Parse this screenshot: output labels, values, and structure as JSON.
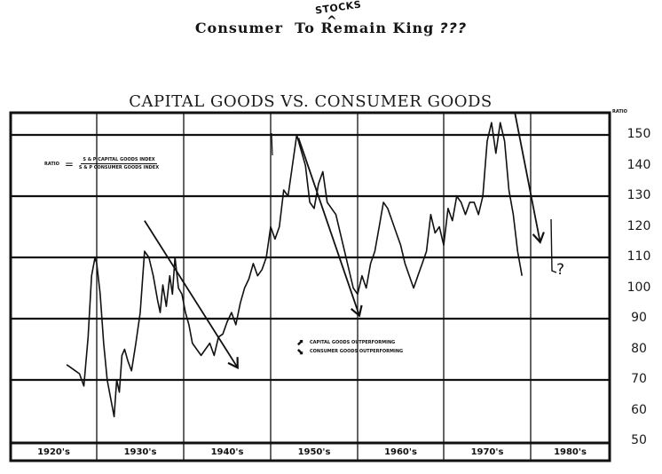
{
  "headline": {
    "text": "Consumer",
    "text_rest": "To Remain King",
    "question_marks": "???",
    "handwritten_insert": "STOCKS",
    "caret": "^"
  },
  "chart_data": {
    "type": "line",
    "title": "CAPITAL GOODS VS. CONSUMER GOODS",
    "xlabel": "",
    "ylabel": "RATIO",
    "ylim": [
      50,
      157
    ],
    "yticks": [
      150,
      140,
      130,
      120,
      110,
      100,
      90,
      80,
      70,
      60,
      50
    ],
    "categories": [
      "1920's",
      "1930's",
      "1940's",
      "1950's",
      "1960's",
      "1970's",
      "1980's"
    ],
    "grid": true,
    "formula": {
      "lhs": "RATIO",
      "numerator": "S & P CAPITAL GOODS INDEX",
      "denominator": "S & P CONSUMER GOODS INDEX"
    },
    "legend": [
      {
        "symbol": "up-arrow",
        "label": "CAPITAL GOODS OUTPERFORMING"
      },
      {
        "symbol": "down-arrow",
        "label": "CONSUMER GOODS OUTPERFORMING"
      }
    ],
    "series": [
      {
        "name": "S&P Capital Goods / Consumer Goods Ratio",
        "x": [
          1926.5,
          1927.0,
          1927.5,
          1928.0,
          1928.5,
          1929.0,
          1929.4,
          1929.8,
          1930.0,
          1930.4,
          1930.8,
          1931.2,
          1931.6,
          1932.0,
          1932.3,
          1932.6,
          1932.9,
          1933.2,
          1933.6,
          1934.0,
          1934.5,
          1935.0,
          1935.5,
          1936.0,
          1936.5,
          1937.0,
          1937.3,
          1937.6,
          1938.0,
          1938.4,
          1938.7,
          1939.0,
          1939.4,
          1939.8,
          1940.2,
          1940.6,
          1941.0,
          1941.5,
          1942.0,
          1942.5,
          1943.0,
          1943.5,
          1944.0,
          1944.5,
          1945.0,
          1945.5,
          1946.0,
          1946.5,
          1947.0,
          1947.5,
          1948.0,
          1948.5,
          1949.0,
          1949.5,
          1950.0,
          1950.5,
          1951.0,
          1951.5,
          1952.0,
          1952.5,
          1953.0,
          1953.5,
          1954.0,
          1954.5,
          1955.0,
          1955.5,
          1956.0,
          1956.5,
          1957.0,
          1957.5,
          1958.0,
          1958.5,
          1959.0,
          1959.5,
          1960.0,
          1960.5,
          1961.0,
          1961.5,
          1962.0,
          1962.5,
          1963.0,
          1963.5,
          1964.0,
          1964.5,
          1965.0,
          1965.5,
          1966.0,
          1966.5,
          1967.0,
          1967.5,
          1968.0,
          1968.5,
          1969.0,
          1969.5,
          1970.0,
          1970.5,
          1971.0,
          1971.5,
          1972.0,
          1972.5,
          1973.0,
          1973.5,
          1974.0,
          1974.5,
          1975.0,
          1975.5,
          1976.0,
          1976.5,
          1977.0,
          1977.5,
          1978.0,
          1978.5,
          1979.0
        ],
        "values": [
          75,
          74,
          73,
          72,
          68,
          84,
          104,
          110,
          108,
          98,
          82,
          70,
          64,
          58,
          70,
          66,
          78,
          80,
          76,
          73,
          82,
          92,
          112,
          110,
          104,
          96,
          92,
          101,
          94,
          104,
          98,
          110,
          100,
          98,
          92,
          88,
          82,
          80,
          78,
          80,
          82,
          78,
          84,
          85,
          89,
          92,
          88,
          95,
          100,
          103,
          108,
          104,
          106,
          110,
          120,
          116,
          120,
          132,
          130,
          140,
          150,
          145,
          140,
          128,
          126,
          134,
          138,
          128,
          126,
          124,
          118,
          112,
          106,
          100,
          98,
          104,
          100,
          108,
          112,
          120,
          128,
          126,
          122,
          118,
          114,
          108,
          104,
          100,
          104,
          108,
          112,
          124,
          118,
          120,
          114,
          126,
          122,
          130,
          128,
          124,
          128,
          128,
          124,
          130,
          148,
          154,
          144,
          154,
          148,
          132,
          124,
          112,
          104
        ],
        "color": "#111111"
      }
    ],
    "annotations": [
      {
        "type": "trend-arrow",
        "label": "1930s-1940s down trend",
        "from": [
          1935.5,
          122
        ],
        "to": [
          1946.2,
          74
        ]
      },
      {
        "type": "trend-arrow",
        "label": "1950s-1960s down trend",
        "from": [
          1953.2,
          149
        ],
        "to": [
          1960.2,
          91
        ]
      },
      {
        "type": "trend-arrow",
        "label": "late 1970s down trend",
        "from": [
          1978.2,
          157
        ],
        "to": [
          1981.2,
          115
        ]
      },
      {
        "type": "handwritten",
        "text": "?"
      }
    ],
    "legend_position": "center-bottom"
  },
  "axis": {
    "ratio_tag": "RATIO"
  }
}
